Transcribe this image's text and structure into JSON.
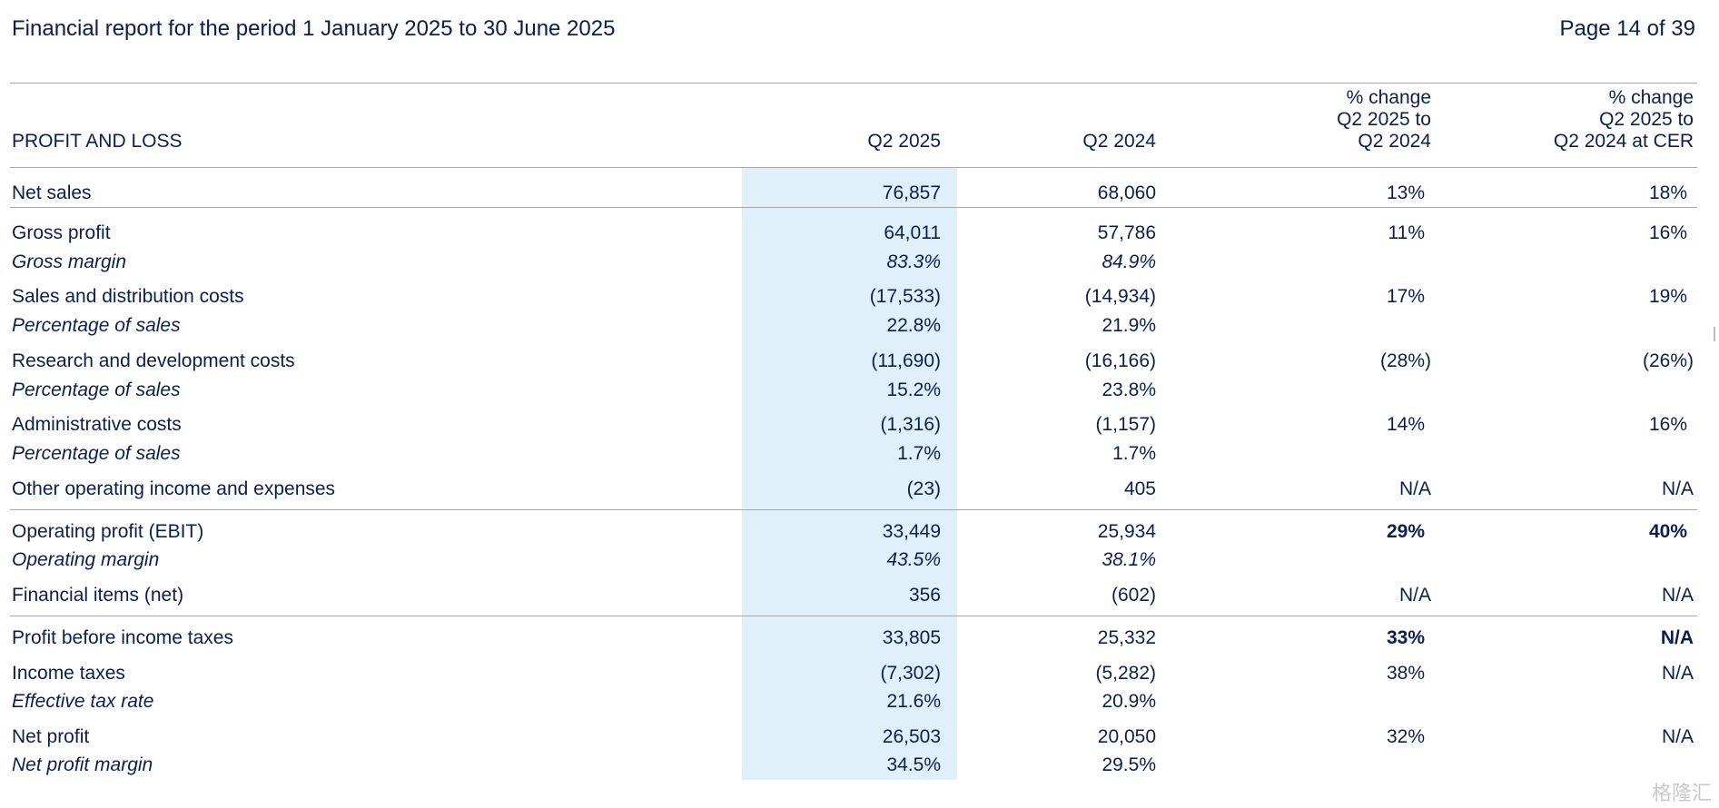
{
  "header": {
    "title": "Financial report for the period 1 January 2025 to 30 June 2025",
    "page": "Page 14 of 39"
  },
  "table": {
    "section_label": "PROFIT AND LOSS",
    "columns": [
      "Q2 2025",
      "Q2 2024",
      "% change\nQ2 2025 to\nQ2 2024",
      "% change\nQ2 2025 to\nQ2 2024 at CER"
    ],
    "rows": [
      {
        "label": "Net sales",
        "q2_2025": "76,857",
        "q2_2024": "68,060",
        "change": "13%",
        "change_cer": "18%"
      },
      {
        "label": "Gross profit",
        "q2_2025": "64,011",
        "q2_2024": "57,786",
        "change": "11%",
        "change_cer": "16%"
      },
      {
        "label": "Gross margin",
        "q2_2025": "83.3%",
        "q2_2024": "84.9%",
        "change": "",
        "change_cer": ""
      },
      {
        "label": "Sales and distribution costs",
        "q2_2025": "(17,533)",
        "q2_2024": "(14,934)",
        "change": "17%",
        "change_cer": "19%"
      },
      {
        "label": "Percentage of sales",
        "q2_2025": "22.8%",
        "q2_2024": "21.9%",
        "change": "",
        "change_cer": ""
      },
      {
        "label": "Research and development costs",
        "q2_2025": "(11,690)",
        "q2_2024": "(16,166)",
        "change": "(28%)",
        "change_cer": "(26%)"
      },
      {
        "label": "Percentage of sales",
        "q2_2025": "15.2%",
        "q2_2024": "23.8%",
        "change": "",
        "change_cer": ""
      },
      {
        "label": "Administrative costs",
        "q2_2025": "(1,316)",
        "q2_2024": "(1,157)",
        "change": "14%",
        "change_cer": "16%"
      },
      {
        "label": "Percentage of sales",
        "q2_2025": "1.7%",
        "q2_2024": "1.7%",
        "change": "",
        "change_cer": ""
      },
      {
        "label": "Other operating income and expenses",
        "q2_2025": "(23)",
        "q2_2024": "405",
        "change": "N/A",
        "change_cer": "N/A"
      },
      {
        "label": "Operating profit (EBIT)",
        "q2_2025": "33,449",
        "q2_2024": "25,934",
        "change": "29%",
        "change_cer": "40%"
      },
      {
        "label": "Operating margin",
        "q2_2025": "43.5%",
        "q2_2024": "38.1%",
        "change": "",
        "change_cer": ""
      },
      {
        "label": "Financial items (net)",
        "q2_2025": "356",
        "q2_2024": "(602)",
        "change": "N/A",
        "change_cer": "N/A"
      },
      {
        "label": "Profit before income taxes",
        "q2_2025": "33,805",
        "q2_2024": "25,332",
        "change": "33%",
        "change_cer": "N/A"
      },
      {
        "label": "Income taxes",
        "q2_2025": "(7,302)",
        "q2_2024": "(5,282)",
        "change": "38%",
        "change_cer": "N/A"
      },
      {
        "label": "Effective tax rate",
        "q2_2025": "21.6%",
        "q2_2024": "20.9%",
        "change": "",
        "change_cer": ""
      },
      {
        "label": "Net profit",
        "q2_2025": "26,503",
        "q2_2024": "20,050",
        "change": "32%",
        "change_cer": "N/A"
      },
      {
        "label": "Net profit margin",
        "q2_2025": "34.5%",
        "q2_2024": "29.5%",
        "change": "",
        "change_cer": ""
      }
    ]
  },
  "watermark": "格隆汇"
}
